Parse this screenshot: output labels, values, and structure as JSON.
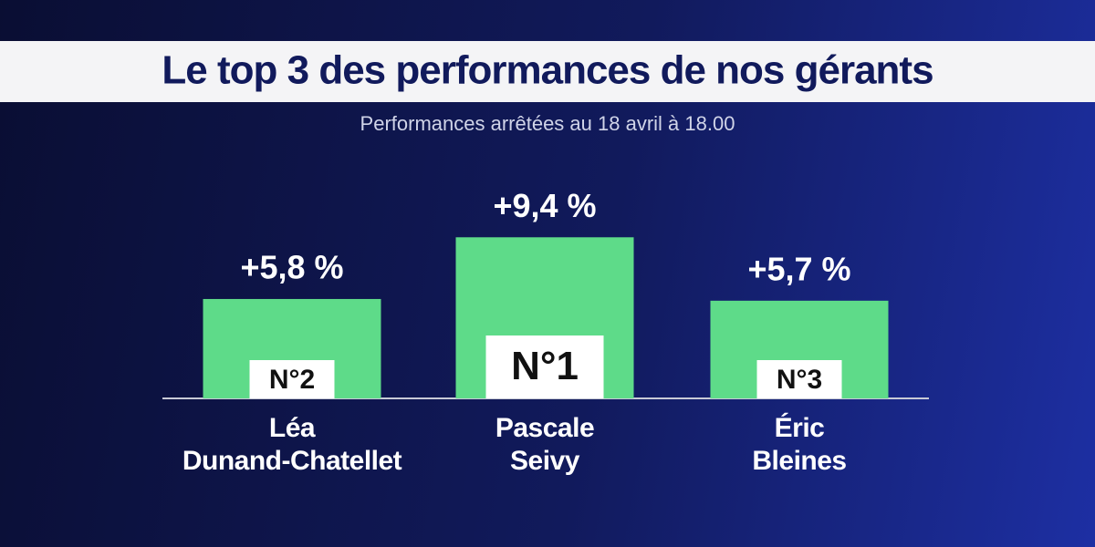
{
  "chart_data": {
    "type": "bar",
    "title": "Le top 3 des performances de nos gérants",
    "subtitle": "Performances arrêtées au 18 avril à 18.00",
    "categories": [
      "Léa Dunand-Chatellet",
      "Pascale Seivy",
      "Éric Bleines"
    ],
    "values": [
      5.8,
      9.4,
      5.7
    ],
    "value_labels": [
      "+5,8 %",
      "+9,4 %",
      "+5,7 %"
    ],
    "ranks": [
      "N°2",
      "N°1",
      "N°3"
    ],
    "color": "#5edb89",
    "ylim": [
      0,
      10
    ]
  }
}
